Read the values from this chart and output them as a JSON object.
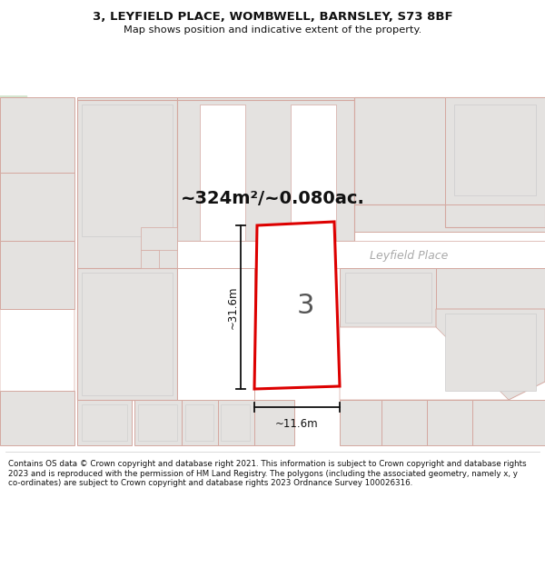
{
  "title_line1": "3, LEYFIELD PLACE, WOMBWELL, BARNSLEY, S73 8BF",
  "title_line2": "Map shows position and indicative extent of the property.",
  "area_text": "~324m²/~0.080ac.",
  "street_label": "Leyfield Place",
  "plot_number": "3",
  "dim_vertical": "~31.6m",
  "dim_horizontal": "~11.6m",
  "footer_text": "Contains OS data © Crown copyright and database right 2021. This information is subject to Crown copyright and database rights 2023 and is reproduced with the permission of HM Land Registry. The polygons (including the associated geometry, namely x, y co-ordinates) are subject to Crown copyright and database rights 2023 Ordnance Survey 100026316.",
  "bg_color": "#ffffff",
  "map_bg": "#f2f0ee",
  "building_fill": "#e4e2e0",
  "building_stroke": "#d4a8a0",
  "road_fill": "#ffffff",
  "subject_stroke": "#dd0000",
  "subject_fill": "#ffffff",
  "green_area": "#d4e6d0",
  "dim_line_color": "#111111",
  "street_label_color": "#aaaaaa",
  "area_text_color": "#111111",
  "plot_label_color": "#555555",
  "title_color": "#111111",
  "footer_color": "#111111"
}
